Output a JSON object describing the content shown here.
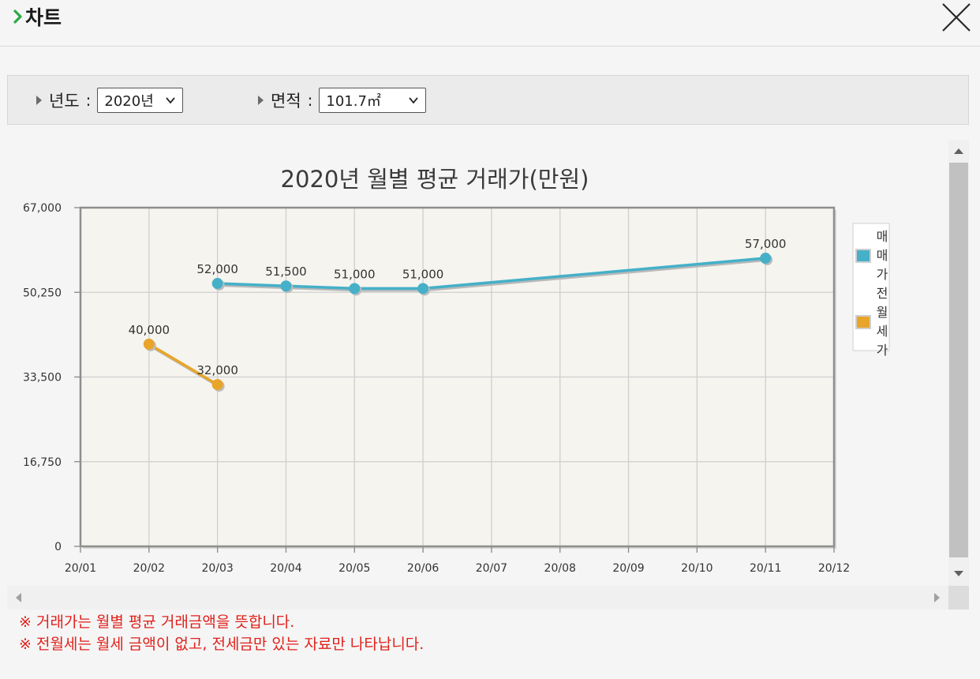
{
  "header": {
    "title": "차트",
    "close_icon": "close-icon"
  },
  "filters": {
    "year": {
      "label": "년도",
      "colon": ":",
      "value": "2020년"
    },
    "area": {
      "label": "면적",
      "colon": ":",
      "value": "101.7㎡"
    }
  },
  "colors": {
    "sale": "#45b0c8",
    "rent": "#e8a52a",
    "accent": "#2ca844",
    "note": "#e0211b"
  },
  "chart_data": {
    "type": "line",
    "title": "2020년 월별 평균 거래가(만원)",
    "categories": [
      "20/01",
      "20/02",
      "20/03",
      "20/04",
      "20/05",
      "20/06",
      "20/07",
      "20/08",
      "20/09",
      "20/10",
      "20/11",
      "20/12"
    ],
    "y_ticks": [
      "0",
      "16,750",
      "33,500",
      "50,250",
      "67,000"
    ],
    "ylim": [
      0,
      67000
    ],
    "grid": true,
    "legend_position": "right",
    "series": [
      {
        "name": "매매가",
        "color": "#45b0c8",
        "values": [
          null,
          null,
          52000,
          51500,
          51000,
          51000,
          null,
          null,
          null,
          null,
          57000,
          null
        ],
        "labels": [
          null,
          null,
          "52,000",
          "51,500",
          "51,000",
          "51,000",
          null,
          null,
          null,
          null,
          "57,000",
          null
        ]
      },
      {
        "name": "전월세가",
        "color": "#e8a52a",
        "values": [
          null,
          40000,
          32000,
          null,
          null,
          null,
          null,
          null,
          null,
          null,
          null,
          null
        ],
        "labels": [
          null,
          "40,000",
          "32,000",
          null,
          null,
          null,
          null,
          null,
          null,
          null,
          null,
          null
        ]
      }
    ]
  },
  "notes": [
    "※ 거래가는 월별 평균 거래금액을 뜻합니다.",
    "※ 전월세는 월세 금액이 없고, 전세금만 있는 자료만 나타납니다."
  ]
}
